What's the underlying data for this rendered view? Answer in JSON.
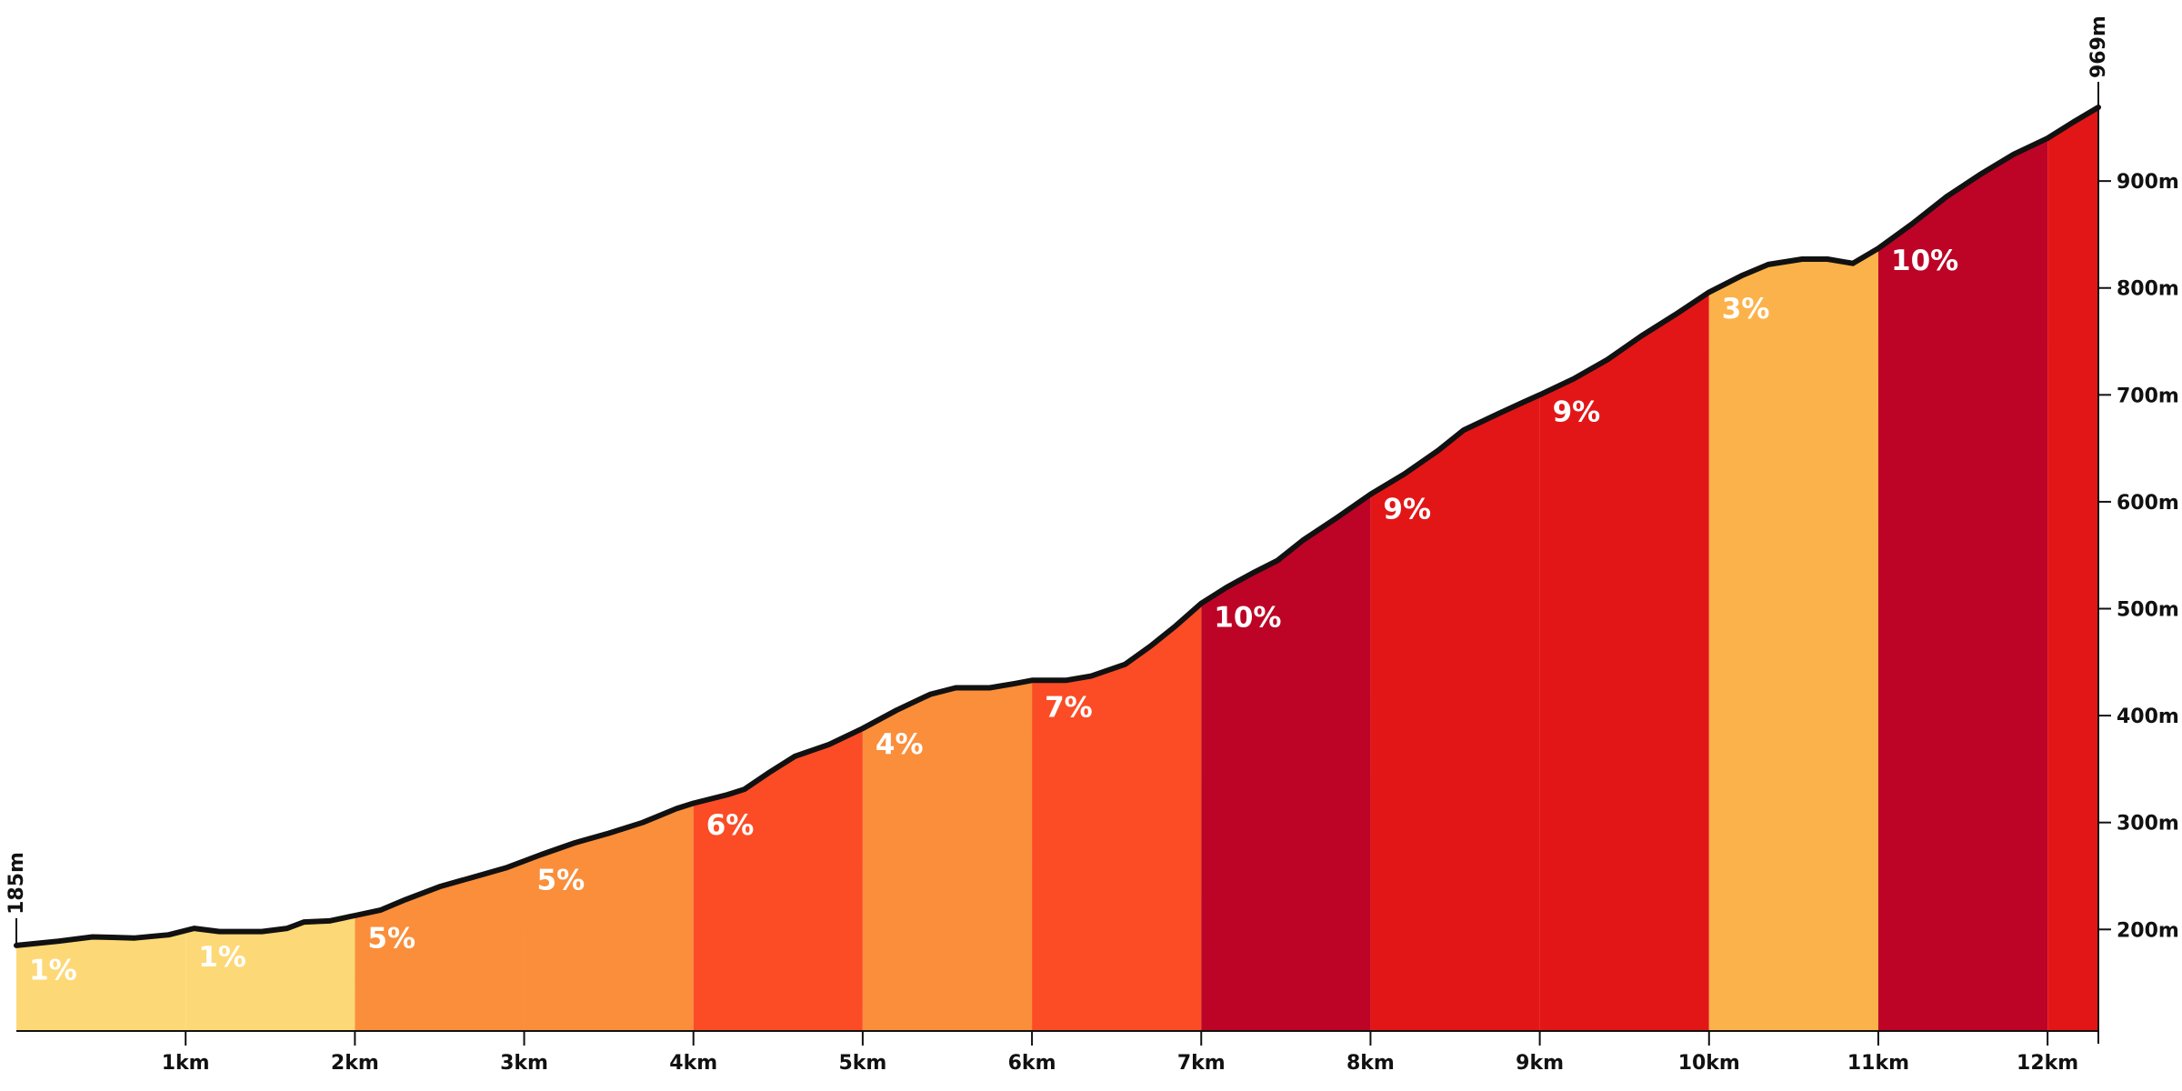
{
  "chart_data": {
    "type": "area",
    "title": "",
    "xlabel": "",
    "ylabel": "",
    "x_unit": "km",
    "y_unit": "m",
    "xlim": [
      0,
      12.3
    ],
    "ylim": [
      105,
      969
    ],
    "start_elevation_label": "185m",
    "end_elevation_label": "969m",
    "x_ticks": [
      {
        "value": 1,
        "label": "1km"
      },
      {
        "value": 2,
        "label": "2km"
      },
      {
        "value": 3,
        "label": "3km"
      },
      {
        "value": 4,
        "label": "4km"
      },
      {
        "value": 5,
        "label": "5km"
      },
      {
        "value": 6,
        "label": "6km"
      },
      {
        "value": 7,
        "label": "7km"
      },
      {
        "value": 8,
        "label": "8km"
      },
      {
        "value": 9,
        "label": "9km"
      },
      {
        "value": 10,
        "label": "10km"
      },
      {
        "value": 11,
        "label": "11km"
      },
      {
        "value": 12,
        "label": "12km"
      }
    ],
    "y_ticks": [
      {
        "value": 200,
        "label": "200m"
      },
      {
        "value": 300,
        "label": "300m"
      },
      {
        "value": 400,
        "label": "400m"
      },
      {
        "value": 500,
        "label": "500m"
      },
      {
        "value": 600,
        "label": "600m"
      },
      {
        "value": 700,
        "label": "700m"
      },
      {
        "value": 800,
        "label": "800m"
      },
      {
        "value": 900,
        "label": "900m"
      }
    ],
    "segments": [
      {
        "start": 0,
        "end": 1,
        "gradient": "1%",
        "color": "#fdd876"
      },
      {
        "start": 1,
        "end": 2,
        "gradient": "1%",
        "color": "#fdd876"
      },
      {
        "start": 2,
        "end": 3,
        "gradient": "5%",
        "color": "#fb8e3a"
      },
      {
        "start": 3,
        "end": 4,
        "gradient": "5%",
        "color": "#fb8e3a"
      },
      {
        "start": 4,
        "end": 5,
        "gradient": "6%",
        "color": "#fb4c26"
      },
      {
        "start": 5,
        "end": 6,
        "gradient": "4%",
        "color": "#fb8e3a"
      },
      {
        "start": 6,
        "end": 7,
        "gradient": "7%",
        "color": "#fb4c26"
      },
      {
        "start": 7,
        "end": 8,
        "gradient": "10%",
        "color": "#bd0426"
      },
      {
        "start": 8,
        "end": 9,
        "gradient": "9%",
        "color": "#e31617"
      },
      {
        "start": 9,
        "end": 10,
        "gradient": "9%",
        "color": "#e31617"
      },
      {
        "start": 10,
        "end": 11,
        "gradient": "3%",
        "color": "#fcb24a"
      },
      {
        "start": 11,
        "end": 12,
        "gradient": "10%",
        "color": "#bd0426"
      },
      {
        "start": 12,
        "end": 12.3,
        "gradient": "",
        "color": "#e31617"
      }
    ],
    "profile": [
      [
        0,
        185
      ],
      [
        0.25,
        189
      ],
      [
        0.45,
        193
      ],
      [
        0.7,
        192
      ],
      [
        0.9,
        195
      ],
      [
        1.05,
        201
      ],
      [
        1.2,
        198
      ],
      [
        1.45,
        198
      ],
      [
        1.6,
        201
      ],
      [
        1.7,
        207
      ],
      [
        1.85,
        208
      ],
      [
        2.0,
        213
      ],
      [
        2.15,
        218
      ],
      [
        2.3,
        228
      ],
      [
        2.5,
        240
      ],
      [
        2.7,
        249
      ],
      [
        2.9,
        258
      ],
      [
        3.1,
        270
      ],
      [
        3.3,
        281
      ],
      [
        3.5,
        290
      ],
      [
        3.7,
        300
      ],
      [
        3.9,
        313
      ],
      [
        4.0,
        318
      ],
      [
        4.2,
        326
      ],
      [
        4.3,
        331
      ],
      [
        4.45,
        347
      ],
      [
        4.6,
        362
      ],
      [
        4.8,
        373
      ],
      [
        5.0,
        388
      ],
      [
        5.2,
        405
      ],
      [
        5.4,
        420
      ],
      [
        5.55,
        426
      ],
      [
        5.75,
        426
      ],
      [
        5.9,
        430
      ],
      [
        6.0,
        433
      ],
      [
        6.2,
        433
      ],
      [
        6.35,
        437
      ],
      [
        6.55,
        448
      ],
      [
        6.7,
        465
      ],
      [
        6.85,
        484
      ],
      [
        7.0,
        505
      ],
      [
        7.15,
        520
      ],
      [
        7.3,
        533
      ],
      [
        7.45,
        545
      ],
      [
        7.6,
        564
      ],
      [
        7.8,
        585
      ],
      [
        8.0,
        607
      ],
      [
        8.2,
        626
      ],
      [
        8.4,
        648
      ],
      [
        8.55,
        667
      ],
      [
        8.75,
        682
      ],
      [
        8.9,
        693
      ],
      [
        9.0,
        700
      ],
      [
        9.2,
        715
      ],
      [
        9.4,
        733
      ],
      [
        9.6,
        755
      ],
      [
        9.8,
        775
      ],
      [
        10.0,
        796
      ],
      [
        10.2,
        812
      ],
      [
        10.35,
        822
      ],
      [
        10.55,
        827
      ],
      [
        10.7,
        827
      ],
      [
        10.85,
        823
      ],
      [
        11.0,
        837
      ],
      [
        11.2,
        860
      ],
      [
        11.4,
        885
      ],
      [
        11.6,
        906
      ],
      [
        11.8,
        925
      ],
      [
        12.0,
        940
      ],
      [
        12.15,
        955
      ],
      [
        12.3,
        969
      ]
    ]
  }
}
